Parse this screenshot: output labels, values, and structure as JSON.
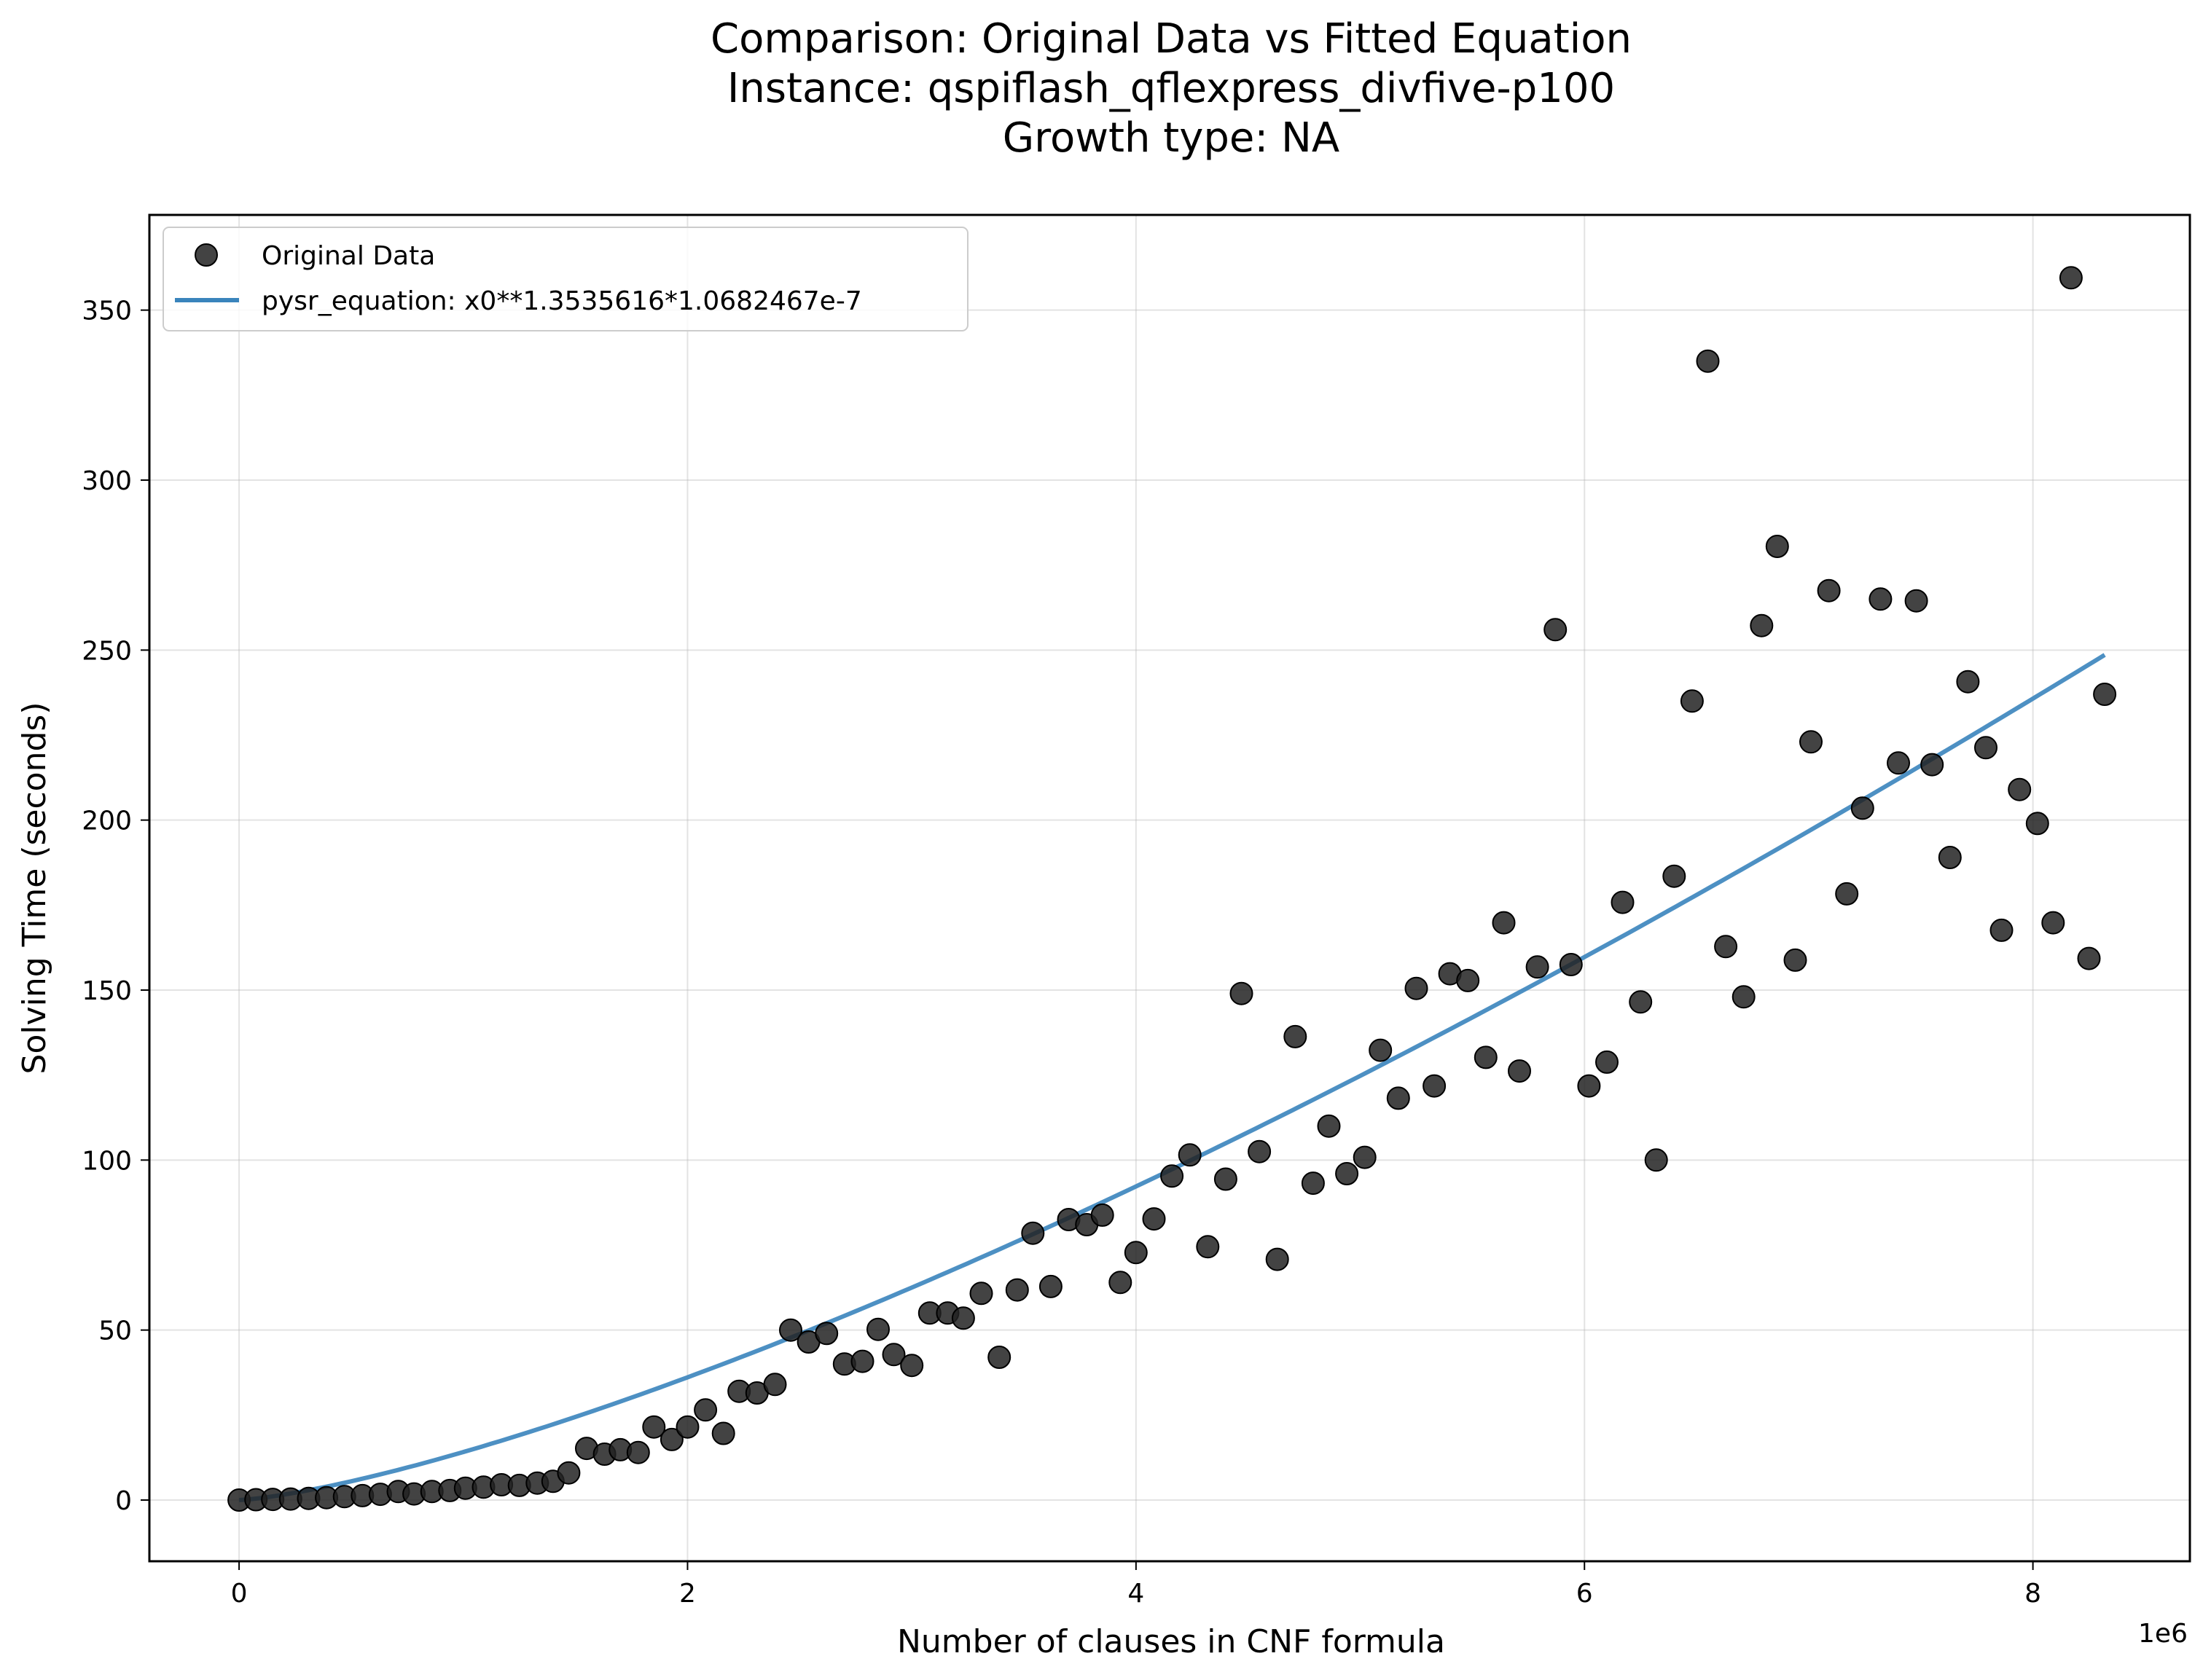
{
  "chart_data": {
    "type": "scatter",
    "title_lines": [
      "Comparison: Original Data vs Fitted Equation",
      "Instance: qspiflash_qflexpress_divfive-p100",
      "Growth type: NA"
    ],
    "xlabel": "Number of clauses in CNF formula",
    "ylabel": "Solving Time (seconds)",
    "x_scale_note": "1e6",
    "xlim": [
      -400000,
      8700000
    ],
    "ylim": [
      -18,
      378
    ],
    "x_ticks": [
      0,
      2000000,
      4000000,
      6000000,
      8000000
    ],
    "x_tick_labels": [
      "0",
      "2",
      "4",
      "6",
      "8"
    ],
    "y_ticks": [
      0,
      50,
      100,
      150,
      200,
      250,
      300,
      350
    ],
    "y_tick_labels": [
      "0",
      "50",
      "100",
      "150",
      "200",
      "250",
      "300",
      "350"
    ],
    "grid": true,
    "legend_position": "top-left",
    "series": [
      {
        "name": "Original Data",
        "kind": "scatter",
        "color": "#222222",
        "points": [
          [
            0,
            0
          ],
          [
            75000,
            0.1
          ],
          [
            150000,
            0.2
          ],
          [
            230000,
            0.3
          ],
          [
            310000,
            0.5
          ],
          [
            390000,
            0.7
          ],
          [
            470000,
            1.0
          ],
          [
            550000,
            1.3
          ],
          [
            630000,
            1.7
          ],
          [
            710000,
            2.5
          ],
          [
            780000,
            1.8
          ],
          [
            860000,
            2.5
          ],
          [
            940000,
            2.8
          ],
          [
            1010000,
            3.5
          ],
          [
            1090000,
            3.8
          ],
          [
            1170000,
            4.5
          ],
          [
            1250000,
            4.3
          ],
          [
            1330000,
            5.0
          ],
          [
            1400000,
            5.5
          ],
          [
            1470000,
            8.0
          ],
          [
            1550000,
            15.2
          ],
          [
            1630000,
            13.5
          ],
          [
            1700000,
            14.8
          ],
          [
            1780000,
            14.0
          ],
          [
            1850000,
            21.5
          ],
          [
            1930000,
            17.8
          ],
          [
            2000000,
            21.5
          ],
          [
            2080000,
            26.5
          ],
          [
            2160000,
            19.6
          ],
          [
            2230000,
            32.0
          ],
          [
            2310000,
            31.5
          ],
          [
            2390000,
            34.0
          ],
          [
            2460000,
            50.0
          ],
          [
            2540000,
            46.5
          ],
          [
            2620000,
            49.0
          ],
          [
            2700000,
            40.0
          ],
          [
            2780000,
            40.8
          ],
          [
            2850000,
            50.2
          ],
          [
            2920000,
            42.8
          ],
          [
            3000000,
            39.6
          ],
          [
            3080000,
            55.0
          ],
          [
            3160000,
            55.0
          ],
          [
            3230000,
            53.5
          ],
          [
            3310000,
            60.8
          ],
          [
            3390000,
            42.0
          ],
          [
            3470000,
            61.8
          ],
          [
            3540000,
            78.5
          ],
          [
            3620000,
            62.8
          ],
          [
            3700000,
            82.5
          ],
          [
            3780000,
            81.0
          ],
          [
            3850000,
            83.8
          ],
          [
            3930000,
            64.0
          ],
          [
            4000000,
            72.8
          ],
          [
            4080000,
            82.7
          ],
          [
            4160000,
            95.3
          ],
          [
            4240000,
            101.5
          ],
          [
            4320000,
            74.5
          ],
          [
            4400000,
            94.4
          ],
          [
            4470000,
            149.0
          ],
          [
            4550000,
            102.5
          ],
          [
            4630000,
            70.8
          ],
          [
            4710000,
            136.3
          ],
          [
            4790000,
            93.2
          ],
          [
            4860000,
            110.0
          ],
          [
            4940000,
            96.0
          ],
          [
            5020000,
            100.8
          ],
          [
            5090000,
            132.3
          ],
          [
            5170000,
            118.2
          ],
          [
            5250000,
            150.5
          ],
          [
            5330000,
            121.8
          ],
          [
            5400000,
            154.8
          ],
          [
            5480000,
            152.8
          ],
          [
            5560000,
            130.2
          ],
          [
            5640000,
            169.8
          ],
          [
            5710000,
            126.2
          ],
          [
            5790000,
            156.8
          ],
          [
            5870000,
            256.0
          ],
          [
            5940000,
            157.5
          ],
          [
            6020000,
            121.8
          ],
          [
            6100000,
            128.8
          ],
          [
            6170000,
            175.8
          ],
          [
            6250000,
            146.5
          ],
          [
            6320000,
            100.0
          ],
          [
            6400000,
            183.5
          ],
          [
            6480000,
            235.0
          ],
          [
            6550000,
            335.0
          ],
          [
            6630000,
            162.8
          ],
          [
            6710000,
            148.0
          ],
          [
            6790000,
            257.2
          ],
          [
            6860000,
            280.5
          ],
          [
            6940000,
            158.8
          ],
          [
            7010000,
            223.0
          ],
          [
            7090000,
            267.5
          ],
          [
            7170000,
            178.3
          ],
          [
            7240000,
            203.5
          ],
          [
            7320000,
            265.0
          ],
          [
            7400000,
            216.8
          ],
          [
            7480000,
            264.5
          ],
          [
            7550000,
            216.3
          ],
          [
            7630000,
            189.0
          ],
          [
            7710000,
            240.7
          ],
          [
            7790000,
            221.3
          ],
          [
            7860000,
            167.6
          ],
          [
            7940000,
            209.0
          ],
          [
            8020000,
            199.0
          ],
          [
            8090000,
            169.8
          ],
          [
            8170000,
            359.5
          ],
          [
            8250000,
            159.3
          ],
          [
            8320000,
            237.0
          ]
        ]
      },
      {
        "name": "pysr_equation: x0**1.3535616*1.0682467e-7",
        "kind": "line",
        "color": "#3a84bc",
        "formula": {
          "coefficient": 1.0682467e-07,
          "exponent": 1.3535616
        },
        "x_range": [
          0,
          8320000
        ]
      }
    ]
  }
}
